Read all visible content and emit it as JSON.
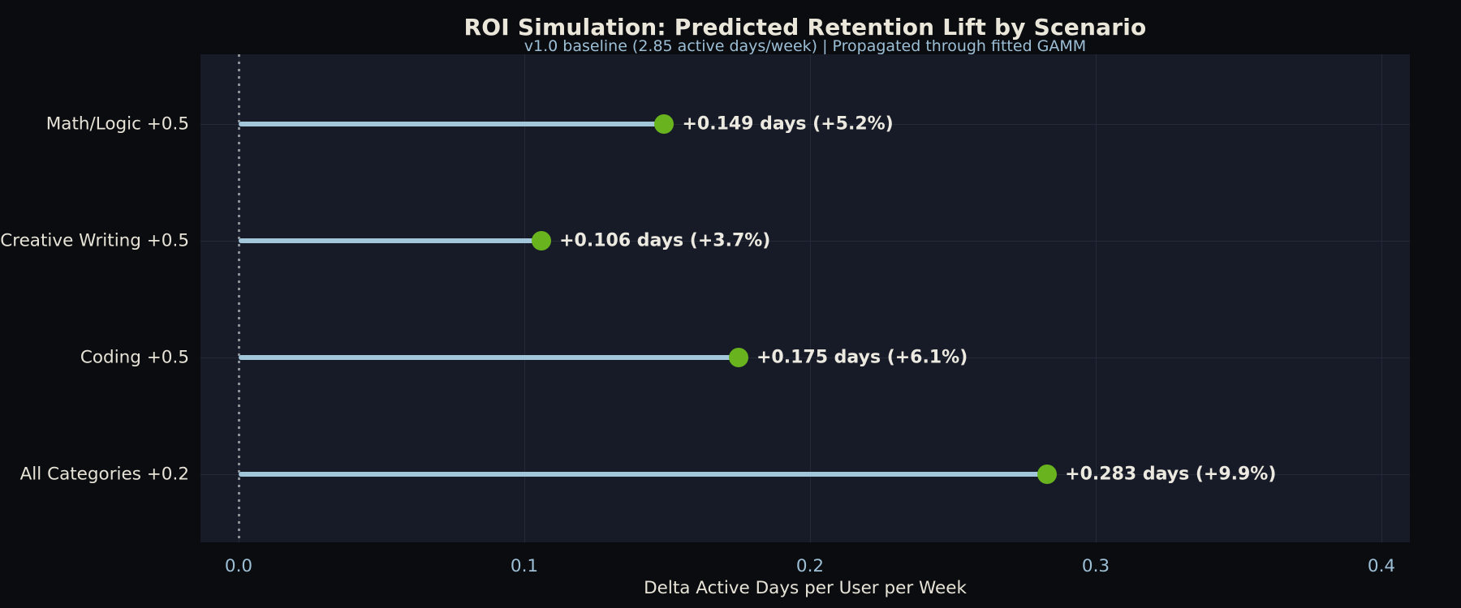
{
  "chart_data": {
    "type": "bar",
    "variant": "lollipop",
    "orientation": "horizontal",
    "title": "ROI Simulation: Predicted Retention Lift by Scenario",
    "subtitle": "v1.0 baseline (2.85 active days/week) | Propagated through fitted GAMM",
    "categories": [
      "Math/Logic +0.5",
      "Creative Writing +0.5",
      "Coding +0.5",
      "All Categories +0.2"
    ],
    "values": [
      0.149,
      0.106,
      0.175,
      0.283
    ],
    "point_labels": [
      "+0.149 days (+5.2%)",
      "+0.106 days (+3.7%)",
      "+0.175 days (+6.1%)",
      "+0.283 days (+9.9%)"
    ],
    "percent_lift": [
      5.2,
      3.7,
      6.1,
      9.9
    ],
    "baseline_active_days_per_week": 2.85,
    "xlabel": "Delta Active Days per User per Week",
    "ylabel": "",
    "x_ticks": [
      "0.0",
      "0.1",
      "0.2",
      "0.3",
      "0.4"
    ],
    "x_tick_values": [
      0.0,
      0.1,
      0.2,
      0.3,
      0.4
    ],
    "xlim": [
      -0.0134,
      0.41
    ],
    "grid": true,
    "zero_line": "dotted-vertical-at-0",
    "legend": "none"
  },
  "colors": {
    "background": "#0a0c10",
    "plot_background": "#171b27",
    "stem": "#a3c6da",
    "dot": "#69b41e",
    "title_text": "#eae6da",
    "subtitle_text": "#9dbfd6",
    "category_text": "#e7e3d7",
    "point_label_text": "#ece9e0",
    "tick_text": "#9dbfd6",
    "axis_title_text": "#e7e3d7",
    "gridline": "#242a37",
    "zero_line": "#8b9096"
  }
}
